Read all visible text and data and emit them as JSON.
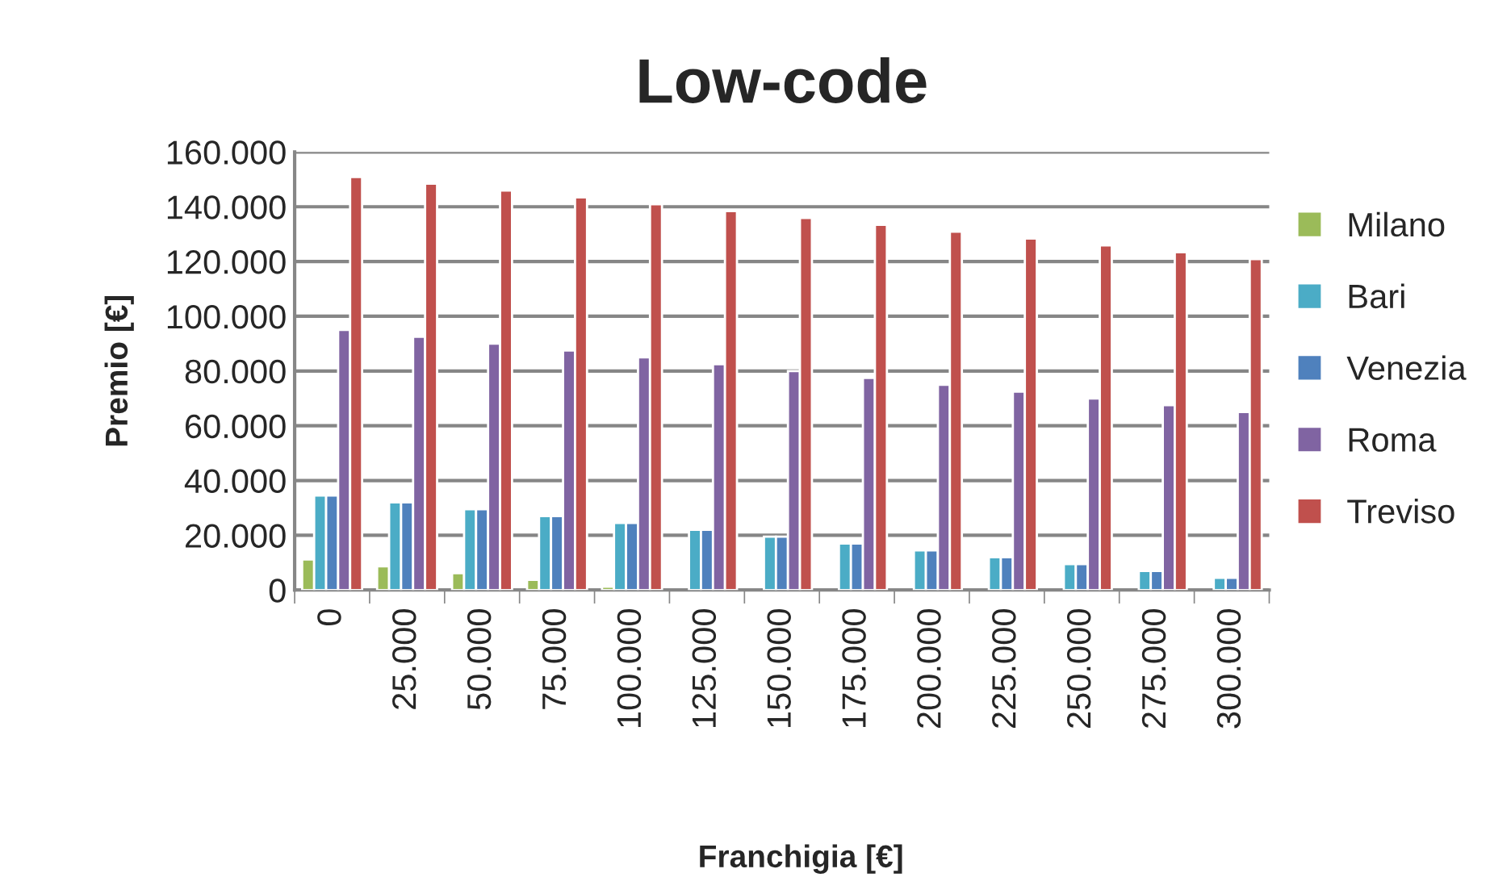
{
  "chart_data": {
    "type": "bar",
    "title": "Low-code",
    "xlabel": "Franchigia [€]",
    "ylabel": "Premio [€]",
    "categories": [
      "0",
      "25.000",
      "50.000",
      "75.000",
      "100.000",
      "125.000",
      "150.000",
      "175.000",
      "200.000",
      "225.000",
      "250.000",
      "275.000",
      "300.000"
    ],
    "series": [
      {
        "name": "Milano",
        "color": "#9bbb59",
        "values": [
          11200,
          8700,
          6200,
          3700,
          1200,
          null,
          null,
          null,
          null,
          null,
          null,
          null,
          null
        ]
      },
      {
        "name": "Bari",
        "color": "#4bacc6",
        "values": [
          34500,
          32000,
          29500,
          27000,
          24500,
          22000,
          19500,
          17000,
          14500,
          12000,
          9500,
          7000,
          4500
        ]
      },
      {
        "name": "Venezia",
        "color": "#4f81bd",
        "values": [
          34500,
          32000,
          29500,
          27000,
          24500,
          22000,
          19500,
          17000,
          14500,
          12000,
          9500,
          7000,
          4500
        ]
      },
      {
        "name": "Roma",
        "color": "#8064a2",
        "values": [
          95000,
          92500,
          90000,
          87500,
          85000,
          82500,
          80000,
          77500,
          75000,
          72500,
          70000,
          67500,
          65000
        ]
      },
      {
        "name": "Treviso",
        "color": "#c0504d",
        "values": [
          150900,
          148400,
          145900,
          143400,
          140900,
          138400,
          135900,
          133400,
          130900,
          128400,
          125900,
          123400,
          120900
        ]
      }
    ],
    "ylim": [
      0,
      160000
    ],
    "yticks": [
      {
        "value": 0,
        "label": "0"
      },
      {
        "value": 20000,
        "label": "20.000"
      },
      {
        "value": 40000,
        "label": "40.000"
      },
      {
        "value": 60000,
        "label": "60.000"
      },
      {
        "value": 80000,
        "label": "80.000"
      },
      {
        "value": 100000,
        "label": "100.000"
      },
      {
        "value": 120000,
        "label": "120.000"
      },
      {
        "value": 140000,
        "label": "140.000"
      },
      {
        "value": 160000,
        "label": "160.000"
      }
    ],
    "grid": "y",
    "legend": "right"
  }
}
